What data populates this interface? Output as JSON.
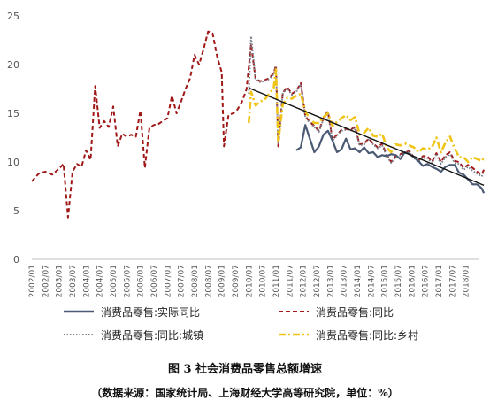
{
  "chart_data": {
    "type": "line",
    "title": "",
    "xlabel": "",
    "ylabel": "",
    "ylim": [
      0,
      25
    ],
    "yticks": [
      0,
      5,
      10,
      15,
      20,
      25
    ],
    "grid": false,
    "legend_position": "bottom",
    "x_start": "2002/01",
    "x_end": "2018/07",
    "xtick_labels": [
      "2002/01",
      "2002/07",
      "2003/01",
      "2003/07",
      "2004/01",
      "2004/07",
      "2005/01",
      "2005/07",
      "2006/01",
      "2006/07",
      "2007/01",
      "2007/07",
      "2008/01",
      "2008/07",
      "2009/01",
      "2009/07",
      "2010/01",
      "2010/07",
      "2011/01",
      "2011/07",
      "2012/01",
      "2012/07",
      "2013/01",
      "2013/07",
      "2014/01",
      "2014/07",
      "2015/01",
      "2015/07",
      "2016/01",
      "2016/07",
      "2017/01",
      "2017/07",
      "2018/01"
    ],
    "series": [
      {
        "name": "消费品零售:实际同比",
        "color": "#4a5a74",
        "dash": "solid",
        "points": [
          [
            "2011/10",
            11.2
          ],
          [
            "2011/12",
            11.5
          ],
          [
            "2012/02",
            13.8
          ],
          [
            "2012/04",
            12.4
          ],
          [
            "2012/06",
            11.0
          ],
          [
            "2012/08",
            11.6
          ],
          [
            "2012/10",
            12.8
          ],
          [
            "2012/12",
            13.2
          ],
          [
            "2013/02",
            12.2
          ],
          [
            "2013/04",
            11.0
          ],
          [
            "2013/06",
            11.3
          ],
          [
            "2013/08",
            12.4
          ],
          [
            "2013/10",
            11.3
          ],
          [
            "2013/12",
            11.4
          ],
          [
            "2014/02",
            11.0
          ],
          [
            "2014/04",
            11.5
          ],
          [
            "2014/06",
            10.9
          ],
          [
            "2014/08",
            11.0
          ],
          [
            "2014/10",
            10.5
          ],
          [
            "2014/12",
            10.7
          ],
          [
            "2015/02",
            10.6
          ],
          [
            "2015/04",
            10.8
          ],
          [
            "2015/06",
            10.7
          ],
          [
            "2015/08",
            10.3
          ],
          [
            "2015/10",
            11.0
          ],
          [
            "2015/12",
            10.8
          ],
          [
            "2016/02",
            10.5
          ],
          [
            "2016/04",
            10.1
          ],
          [
            "2016/06",
            9.6
          ],
          [
            "2016/08",
            9.8
          ],
          [
            "2016/10",
            9.5
          ],
          [
            "2016/12",
            9.3
          ],
          [
            "2017/02",
            9.0
          ],
          [
            "2017/04",
            9.5
          ],
          [
            "2017/06",
            9.7
          ],
          [
            "2017/08",
            9.7
          ],
          [
            "2017/10",
            8.9
          ],
          [
            "2017/12",
            8.7
          ],
          [
            "2018/02",
            8.2
          ],
          [
            "2018/04",
            7.7
          ],
          [
            "2018/06",
            7.7
          ],
          [
            "2018/08",
            7.3
          ],
          [
            "2018/09",
            6.8
          ]
        ]
      },
      {
        "name": "消费品零售:同比",
        "color": "#a01818",
        "dash": "5,3",
        "points": [
          [
            "2002/01",
            8.0
          ],
          [
            "2002/04",
            8.8
          ],
          [
            "2002/07",
            9.0
          ],
          [
            "2002/10",
            8.7
          ],
          [
            "2003/01",
            9.3
          ],
          [
            "2003/03",
            9.8
          ],
          [
            "2003/05",
            4.3
          ],
          [
            "2003/07",
            9.0
          ],
          [
            "2003/09",
            9.8
          ],
          [
            "2003/11",
            9.5
          ],
          [
            "2004/01",
            11.2
          ],
          [
            "2004/03",
            10.2
          ],
          [
            "2004/05",
            17.8
          ],
          [
            "2004/07",
            13.5
          ],
          [
            "2004/09",
            14.2
          ],
          [
            "2004/11",
            13.6
          ],
          [
            "2005/01",
            15.7
          ],
          [
            "2005/03",
            11.6
          ],
          [
            "2005/05",
            12.9
          ],
          [
            "2005/07",
            12.6
          ],
          [
            "2005/09",
            12.8
          ],
          [
            "2005/11",
            12.6
          ],
          [
            "2006/01",
            15.3
          ],
          [
            "2006/03",
            9.4
          ],
          [
            "2006/05",
            13.5
          ],
          [
            "2006/07",
            13.8
          ],
          [
            "2006/09",
            13.9
          ],
          [
            "2006/11",
            14.2
          ],
          [
            "2007/01",
            14.5
          ],
          [
            "2007/03",
            16.8
          ],
          [
            "2007/05",
            15.0
          ],
          [
            "2007/07",
            16.2
          ],
          [
            "2007/09",
            17.5
          ],
          [
            "2007/11",
            18.6
          ],
          [
            "2008/01",
            21.0
          ],
          [
            "2008/03",
            20.0
          ],
          [
            "2008/05",
            21.6
          ],
          [
            "2008/07",
            23.4
          ],
          [
            "2008/09",
            23.2
          ],
          [
            "2008/11",
            20.8
          ],
          [
            "2009/01",
            19.2
          ],
          [
            "2009/02",
            11.6
          ],
          [
            "2009/04",
            14.8
          ],
          [
            "2009/06",
            15.0
          ],
          [
            "2009/08",
            15.4
          ],
          [
            "2009/10",
            16.2
          ],
          [
            "2009/12",
            17.5
          ],
          [
            "2010/02",
            22.1
          ],
          [
            "2010/04",
            18.5
          ],
          [
            "2010/06",
            18.3
          ],
          [
            "2010/08",
            18.4
          ],
          [
            "2010/10",
            18.6
          ],
          [
            "2010/12",
            19.1
          ],
          [
            "2011/01",
            19.9
          ],
          [
            "2011/02",
            11.6
          ],
          [
            "2011/04",
            17.1
          ],
          [
            "2011/06",
            17.7
          ],
          [
            "2011/08",
            17.0
          ],
          [
            "2011/10",
            17.3
          ],
          [
            "2011/12",
            18.1
          ],
          [
            "2012/02",
            14.7
          ],
          [
            "2012/04",
            14.1
          ],
          [
            "2012/06",
            13.7
          ],
          [
            "2012/08",
            13.2
          ],
          [
            "2012/10",
            14.5
          ],
          [
            "2012/12",
            15.2
          ],
          [
            "2013/02",
            12.3
          ],
          [
            "2013/04",
            12.8
          ],
          [
            "2013/06",
            13.3
          ],
          [
            "2013/08",
            13.4
          ],
          [
            "2013/10",
            13.3
          ],
          [
            "2013/12",
            13.6
          ],
          [
            "2014/02",
            11.8
          ],
          [
            "2014/04",
            11.9
          ],
          [
            "2014/06",
            12.4
          ],
          [
            "2014/08",
            11.9
          ],
          [
            "2014/10",
            11.5
          ],
          [
            "2014/12",
            11.9
          ],
          [
            "2015/02",
            10.7
          ],
          [
            "2015/04",
            10.0
          ],
          [
            "2015/06",
            10.6
          ],
          [
            "2015/08",
            10.8
          ],
          [
            "2015/10",
            11.0
          ],
          [
            "2015/12",
            11.1
          ],
          [
            "2016/02",
            10.5
          ],
          [
            "2016/04",
            10.1
          ],
          [
            "2016/06",
            10.6
          ],
          [
            "2016/08",
            10.6
          ],
          [
            "2016/10",
            10.0
          ],
          [
            "2016/12",
            10.9
          ],
          [
            "2017/02",
            10.0
          ],
          [
            "2017/04",
            10.7
          ],
          [
            "2017/06",
            11.0
          ],
          [
            "2017/08",
            10.1
          ],
          [
            "2017/10",
            10.0
          ],
          [
            "2017/12",
            9.4
          ],
          [
            "2018/02",
            9.7
          ],
          [
            "2018/04",
            9.4
          ],
          [
            "2018/06",
            9.0
          ],
          [
            "2018/08",
            8.7
          ],
          [
            "2018/09",
            9.2
          ]
        ]
      },
      {
        "name": "消费品零售:同比:城镇",
        "color": "#7a7f8c",
        "dash": "1.5,2",
        "points": [
          [
            "2010/01",
            17.0
          ],
          [
            "2010/02",
            22.9
          ],
          [
            "2010/04",
            18.4
          ],
          [
            "2010/06",
            18.2
          ],
          [
            "2010/08",
            18.3
          ],
          [
            "2010/10",
            18.5
          ],
          [
            "2010/12",
            19.0
          ],
          [
            "2011/01",
            19.7
          ],
          [
            "2011/02",
            11.8
          ],
          [
            "2011/04",
            17.0
          ],
          [
            "2011/06",
            17.6
          ],
          [
            "2011/08",
            16.9
          ],
          [
            "2011/10",
            17.2
          ],
          [
            "2011/12",
            18.0
          ],
          [
            "2012/02",
            14.6
          ],
          [
            "2012/04",
            14.0
          ],
          [
            "2012/06",
            13.6
          ],
          [
            "2012/08",
            13.1
          ],
          [
            "2012/10",
            14.4
          ],
          [
            "2012/12",
            15.0
          ],
          [
            "2013/02",
            12.2
          ],
          [
            "2013/04",
            12.7
          ],
          [
            "2013/06",
            13.2
          ],
          [
            "2013/08",
            13.3
          ],
          [
            "2013/10",
            13.2
          ],
          [
            "2013/12",
            13.5
          ],
          [
            "2014/02",
            11.7
          ],
          [
            "2014/04",
            11.8
          ],
          [
            "2014/06",
            12.3
          ],
          [
            "2014/08",
            11.8
          ],
          [
            "2014/10",
            11.4
          ],
          [
            "2014/12",
            11.7
          ],
          [
            "2015/02",
            10.6
          ],
          [
            "2015/04",
            9.9
          ],
          [
            "2015/06",
            10.5
          ],
          [
            "2015/08",
            10.7
          ],
          [
            "2015/10",
            10.9
          ],
          [
            "2015/12",
            11.0
          ],
          [
            "2016/02",
            10.4
          ],
          [
            "2016/04",
            10.0
          ],
          [
            "2016/06",
            10.4
          ],
          [
            "2016/08",
            10.4
          ],
          [
            "2016/10",
            9.9
          ],
          [
            "2016/12",
            10.7
          ],
          [
            "2017/02",
            9.8
          ],
          [
            "2017/04",
            10.5
          ],
          [
            "2017/06",
            10.8
          ],
          [
            "2017/08",
            9.9
          ],
          [
            "2017/10",
            9.8
          ],
          [
            "2017/12",
            9.2
          ],
          [
            "2018/02",
            9.5
          ],
          [
            "2018/04",
            9.1
          ],
          [
            "2018/06",
            8.8
          ],
          [
            "2018/08",
            8.5
          ],
          [
            "2018/09",
            9.0
          ]
        ]
      },
      {
        "name": "消费品零售:同比:乡村",
        "color": "#f0c419",
        "dash": "8,3,2,3",
        "points": [
          [
            "2010/01",
            14.0
          ],
          [
            "2010/02",
            17.2
          ],
          [
            "2010/04",
            15.8
          ],
          [
            "2010/06",
            16.2
          ],
          [
            "2010/08",
            16.4
          ],
          [
            "2010/10",
            17.0
          ],
          [
            "2010/12",
            17.6
          ],
          [
            "2011/01",
            19.5
          ],
          [
            "2011/02",
            12.0
          ],
          [
            "2011/04",
            15.9
          ],
          [
            "2011/06",
            16.6
          ],
          [
            "2011/08",
            16.5
          ],
          [
            "2011/10",
            16.8
          ],
          [
            "2011/12",
            17.0
          ],
          [
            "2012/02",
            15.2
          ],
          [
            "2012/04",
            14.4
          ],
          [
            "2012/06",
            14.0
          ],
          [
            "2012/08",
            14.0
          ],
          [
            "2012/10",
            14.6
          ],
          [
            "2012/12",
            15.0
          ],
          [
            "2013/02",
            13.7
          ],
          [
            "2013/04",
            14.1
          ],
          [
            "2013/06",
            14.5
          ],
          [
            "2013/08",
            14.8
          ],
          [
            "2013/10",
            14.3
          ],
          [
            "2013/12",
            14.6
          ],
          [
            "2014/02",
            12.8
          ],
          [
            "2014/04",
            13.0
          ],
          [
            "2014/06",
            13.5
          ],
          [
            "2014/08",
            12.7
          ],
          [
            "2014/10",
            12.6
          ],
          [
            "2014/12",
            12.9
          ],
          [
            "2015/02",
            11.5
          ],
          [
            "2015/04",
            11.0
          ],
          [
            "2015/06",
            11.8
          ],
          [
            "2015/08",
            11.7
          ],
          [
            "2015/10",
            11.9
          ],
          [
            "2015/12",
            11.7
          ],
          [
            "2016/02",
            11.5
          ],
          [
            "2016/04",
            11.0
          ],
          [
            "2016/06",
            11.4
          ],
          [
            "2016/08",
            11.3
          ],
          [
            "2016/10",
            11.5
          ],
          [
            "2016/12",
            12.5
          ],
          [
            "2017/02",
            11.0
          ],
          [
            "2017/04",
            12.0
          ],
          [
            "2017/06",
            12.6
          ],
          [
            "2017/08",
            11.4
          ],
          [
            "2017/10",
            10.5
          ],
          [
            "2017/12",
            10.5
          ],
          [
            "2018/02",
            10.0
          ],
          [
            "2018/04",
            10.5
          ],
          [
            "2018/06",
            10.3
          ],
          [
            "2018/08",
            10.1
          ],
          [
            "2018/09",
            10.4
          ]
        ]
      }
    ],
    "trendline": {
      "color": "#111111",
      "points": [
        [
          "2010/01",
          17.6
        ],
        [
          "2018/09",
          7.6
        ]
      ]
    }
  },
  "caption": "图 3  社会消费品零售总额增速",
  "source": "（数据来源：国家统计局、上海财经大学高等研究院，单位：%）"
}
